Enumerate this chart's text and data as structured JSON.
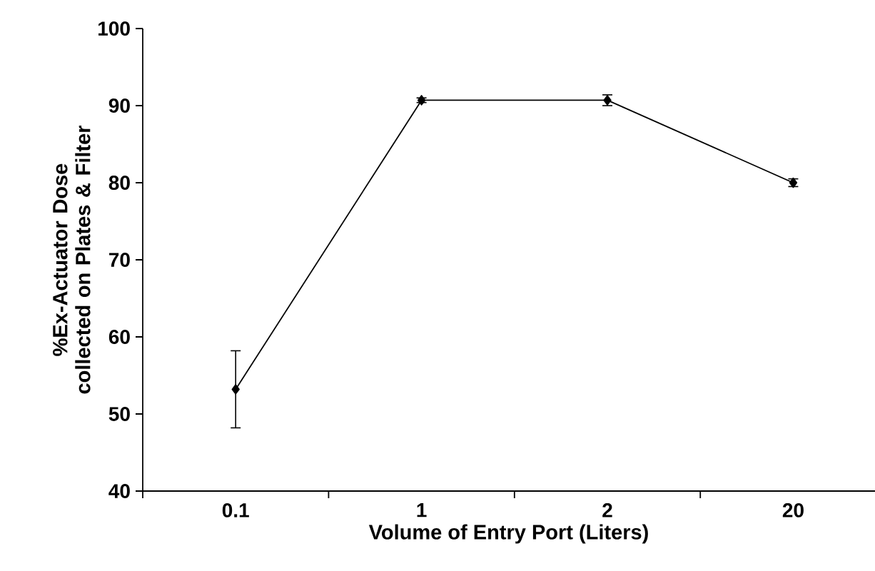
{
  "chart_data": {
    "type": "line",
    "xlabel": "Volume of Entry Port (Liters)",
    "ylabel": "%Ex-Actuator Dose collected on Plates & Filter",
    "categories": [
      "0.1",
      "1",
      "2",
      "20"
    ],
    "series": [
      {
        "color": "#000000",
        "values": [
          53.2,
          90.7,
          90.7,
          80.0
        ],
        "errors": [
          5.0,
          0.3,
          0.7,
          0.5
        ]
      }
    ],
    "ylim": [
      40,
      100
    ],
    "yticks": [
      40,
      50,
      60,
      70,
      80,
      90,
      100
    ],
    "grid": false,
    "marker": "diamond",
    "line_style": "solid"
  }
}
